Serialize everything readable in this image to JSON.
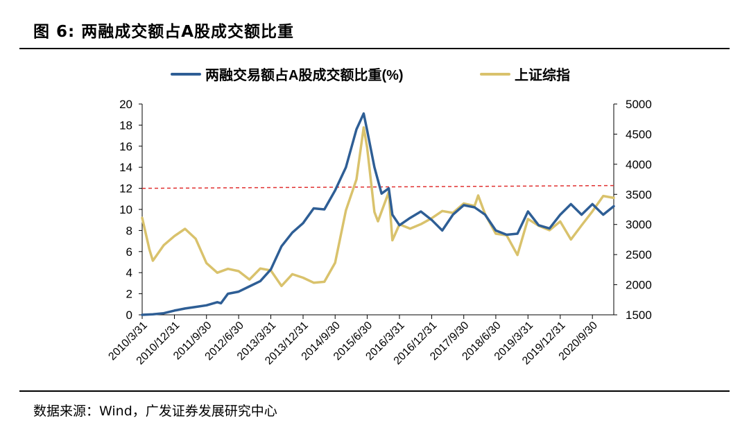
{
  "figure": {
    "title": "图 6: 两融成交额占A股成交额比重",
    "source": "数据来源：Wind，广发证券发展研究中心"
  },
  "colors": {
    "ratio": "#2E5E95",
    "index": "#D9C26C",
    "refline": "#E03030"
  },
  "chart_data": {
    "type": "line",
    "legend_position": "top",
    "grid": false,
    "x_tick_labels": [
      "2010/3/31",
      "2010/12/31",
      "2011/9/30",
      "2012/6/30",
      "2013/3/31",
      "2013/12/31",
      "2014/9/30",
      "2015/6/30",
      "2016/3/31",
      "2016/12/31",
      "2017/9/30",
      "2018/6/30",
      "2019/3/31",
      "2019/12/31",
      "2020/9/30"
    ],
    "x_range": [
      "2010-03-31",
      "2021-03-31"
    ],
    "y_left": {
      "range": [
        0,
        20
      ],
      "ticks": [
        0,
        2,
        4,
        6,
        8,
        10,
        12,
        14,
        16,
        18,
        20
      ]
    },
    "y_right": {
      "range": [
        1500,
        5000
      ],
      "ticks": [
        1500,
        2000,
        2500,
        3000,
        3500,
        4000,
        4500,
        5000
      ]
    },
    "reference_line": {
      "axis": "left",
      "value": 12,
      "style": "dashed"
    },
    "series": [
      {
        "name": "两融交易额占A股成交额比重(%)",
        "axis": "left",
        "points": [
          [
            "2010-03-31",
            0.0
          ],
          [
            "2010-06-30",
            0.05
          ],
          [
            "2010-09-30",
            0.15
          ],
          [
            "2010-12-31",
            0.4
          ],
          [
            "2011-03-31",
            0.6
          ],
          [
            "2011-06-30",
            0.75
          ],
          [
            "2011-09-30",
            0.9
          ],
          [
            "2011-12-31",
            1.2
          ],
          [
            "2012-01-31",
            1.1
          ],
          [
            "2012-03-31",
            2.0
          ],
          [
            "2012-06-30",
            2.2
          ],
          [
            "2012-09-30",
            2.7
          ],
          [
            "2012-12-31",
            3.2
          ],
          [
            "2013-03-31",
            4.3
          ],
          [
            "2013-06-30",
            6.5
          ],
          [
            "2013-09-30",
            7.8
          ],
          [
            "2013-12-31",
            8.7
          ],
          [
            "2014-03-31",
            10.1
          ],
          [
            "2014-06-30",
            10.0
          ],
          [
            "2014-09-30",
            11.8
          ],
          [
            "2014-12-31",
            14.0
          ],
          [
            "2015-03-31",
            17.6
          ],
          [
            "2015-05-31",
            19.1
          ],
          [
            "2015-06-30",
            17.5
          ],
          [
            "2015-08-31",
            14.0
          ],
          [
            "2015-10-31",
            11.5
          ],
          [
            "2015-12-31",
            12.0
          ],
          [
            "2016-01-31",
            9.5
          ],
          [
            "2016-03-31",
            8.5
          ],
          [
            "2016-06-30",
            9.2
          ],
          [
            "2016-09-30",
            9.8
          ],
          [
            "2016-12-31",
            9.0
          ],
          [
            "2017-03-31",
            8.0
          ],
          [
            "2017-06-30",
            9.5
          ],
          [
            "2017-09-30",
            10.4
          ],
          [
            "2017-12-31",
            10.2
          ],
          [
            "2018-03-31",
            9.5
          ],
          [
            "2018-06-30",
            8.0
          ],
          [
            "2018-09-30",
            7.6
          ],
          [
            "2018-12-31",
            7.7
          ],
          [
            "2019-03-31",
            9.8
          ],
          [
            "2019-06-30",
            8.5
          ],
          [
            "2019-09-30",
            8.2
          ],
          [
            "2019-12-31",
            9.5
          ],
          [
            "2020-03-31",
            10.5
          ],
          [
            "2020-06-30",
            9.5
          ],
          [
            "2020-09-30",
            10.5
          ],
          [
            "2020-12-31",
            9.5
          ],
          [
            "2021-03-31",
            10.3
          ]
        ]
      },
      {
        "name": "上证综指",
        "axis": "right",
        "points": [
          [
            "2010-03-31",
            3109
          ],
          [
            "2010-05-31",
            2592
          ],
          [
            "2010-06-30",
            2398
          ],
          [
            "2010-09-30",
            2655
          ],
          [
            "2010-12-31",
            2808
          ],
          [
            "2011-03-31",
            2928
          ],
          [
            "2011-06-30",
            2762
          ],
          [
            "2011-09-30",
            2359
          ],
          [
            "2011-12-31",
            2199
          ],
          [
            "2012-03-31",
            2263
          ],
          [
            "2012-06-30",
            2225
          ],
          [
            "2012-09-30",
            2086
          ],
          [
            "2012-12-31",
            2269
          ],
          [
            "2013-03-31",
            2237
          ],
          [
            "2013-06-30",
            1979
          ],
          [
            "2013-09-30",
            2175
          ],
          [
            "2013-12-31",
            2116
          ],
          [
            "2014-03-31",
            2033
          ],
          [
            "2014-06-30",
            2048
          ],
          [
            "2014-09-30",
            2364
          ],
          [
            "2014-12-31",
            3235
          ],
          [
            "2015-03-31",
            3748
          ],
          [
            "2015-05-31",
            4611
          ],
          [
            "2015-06-30",
            4277
          ],
          [
            "2015-08-31",
            3206
          ],
          [
            "2015-09-30",
            3053
          ],
          [
            "2015-12-31",
            3539
          ],
          [
            "2016-01-31",
            2738
          ],
          [
            "2016-03-31",
            3003
          ],
          [
            "2016-06-30",
            2930
          ],
          [
            "2016-09-30",
            3005
          ],
          [
            "2016-12-31",
            3104
          ],
          [
            "2017-03-31",
            3223
          ],
          [
            "2017-06-30",
            3192
          ],
          [
            "2017-09-30",
            3349
          ],
          [
            "2017-12-31",
            3307
          ],
          [
            "2018-01-31",
            3481
          ],
          [
            "2018-03-31",
            3169
          ],
          [
            "2018-06-30",
            2847
          ],
          [
            "2018-09-30",
            2821
          ],
          [
            "2018-12-31",
            2494
          ],
          [
            "2019-03-31",
            3091
          ],
          [
            "2019-06-30",
            2979
          ],
          [
            "2019-09-30",
            2905
          ],
          [
            "2019-12-31",
            3050
          ],
          [
            "2020-03-31",
            2750
          ],
          [
            "2020-06-30",
            2985
          ],
          [
            "2020-09-30",
            3218
          ],
          [
            "2020-12-31",
            3473
          ],
          [
            "2021-03-31",
            3441
          ]
        ]
      }
    ]
  }
}
